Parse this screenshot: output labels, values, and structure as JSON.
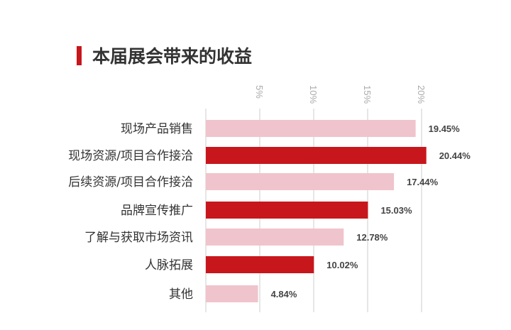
{
  "chart_data": {
    "type": "bar",
    "orientation": "horizontal",
    "title": "本届展会带来的收益",
    "categories": [
      "现场产品销售",
      "现场资源/项目合作接洽",
      "后续资源/项目合作接洽",
      "品牌宣传推广",
      "了解与获取市场资讯",
      "人脉拓展",
      "其他"
    ],
    "values": [
      19.45,
      20.44,
      17.44,
      15.03,
      12.78,
      10.02,
      4.84
    ],
    "value_labels": [
      "19.45%",
      "20.44%",
      "17.44%",
      "15.03%",
      "12.78%",
      "10.02%",
      "4.84%"
    ],
    "xticks": [
      5,
      10,
      15,
      20
    ],
    "xtick_labels": [
      "5%",
      "10%",
      "15%",
      "20%"
    ],
    "xlim": [
      0,
      20.5
    ],
    "grid": true,
    "bar_colors": [
      "#f0c4cc",
      "#c8161d",
      "#f0c4cc",
      "#c8161d",
      "#f0c4cc",
      "#c8161d",
      "#f0c4cc"
    ],
    "accent": "#c8161d"
  }
}
